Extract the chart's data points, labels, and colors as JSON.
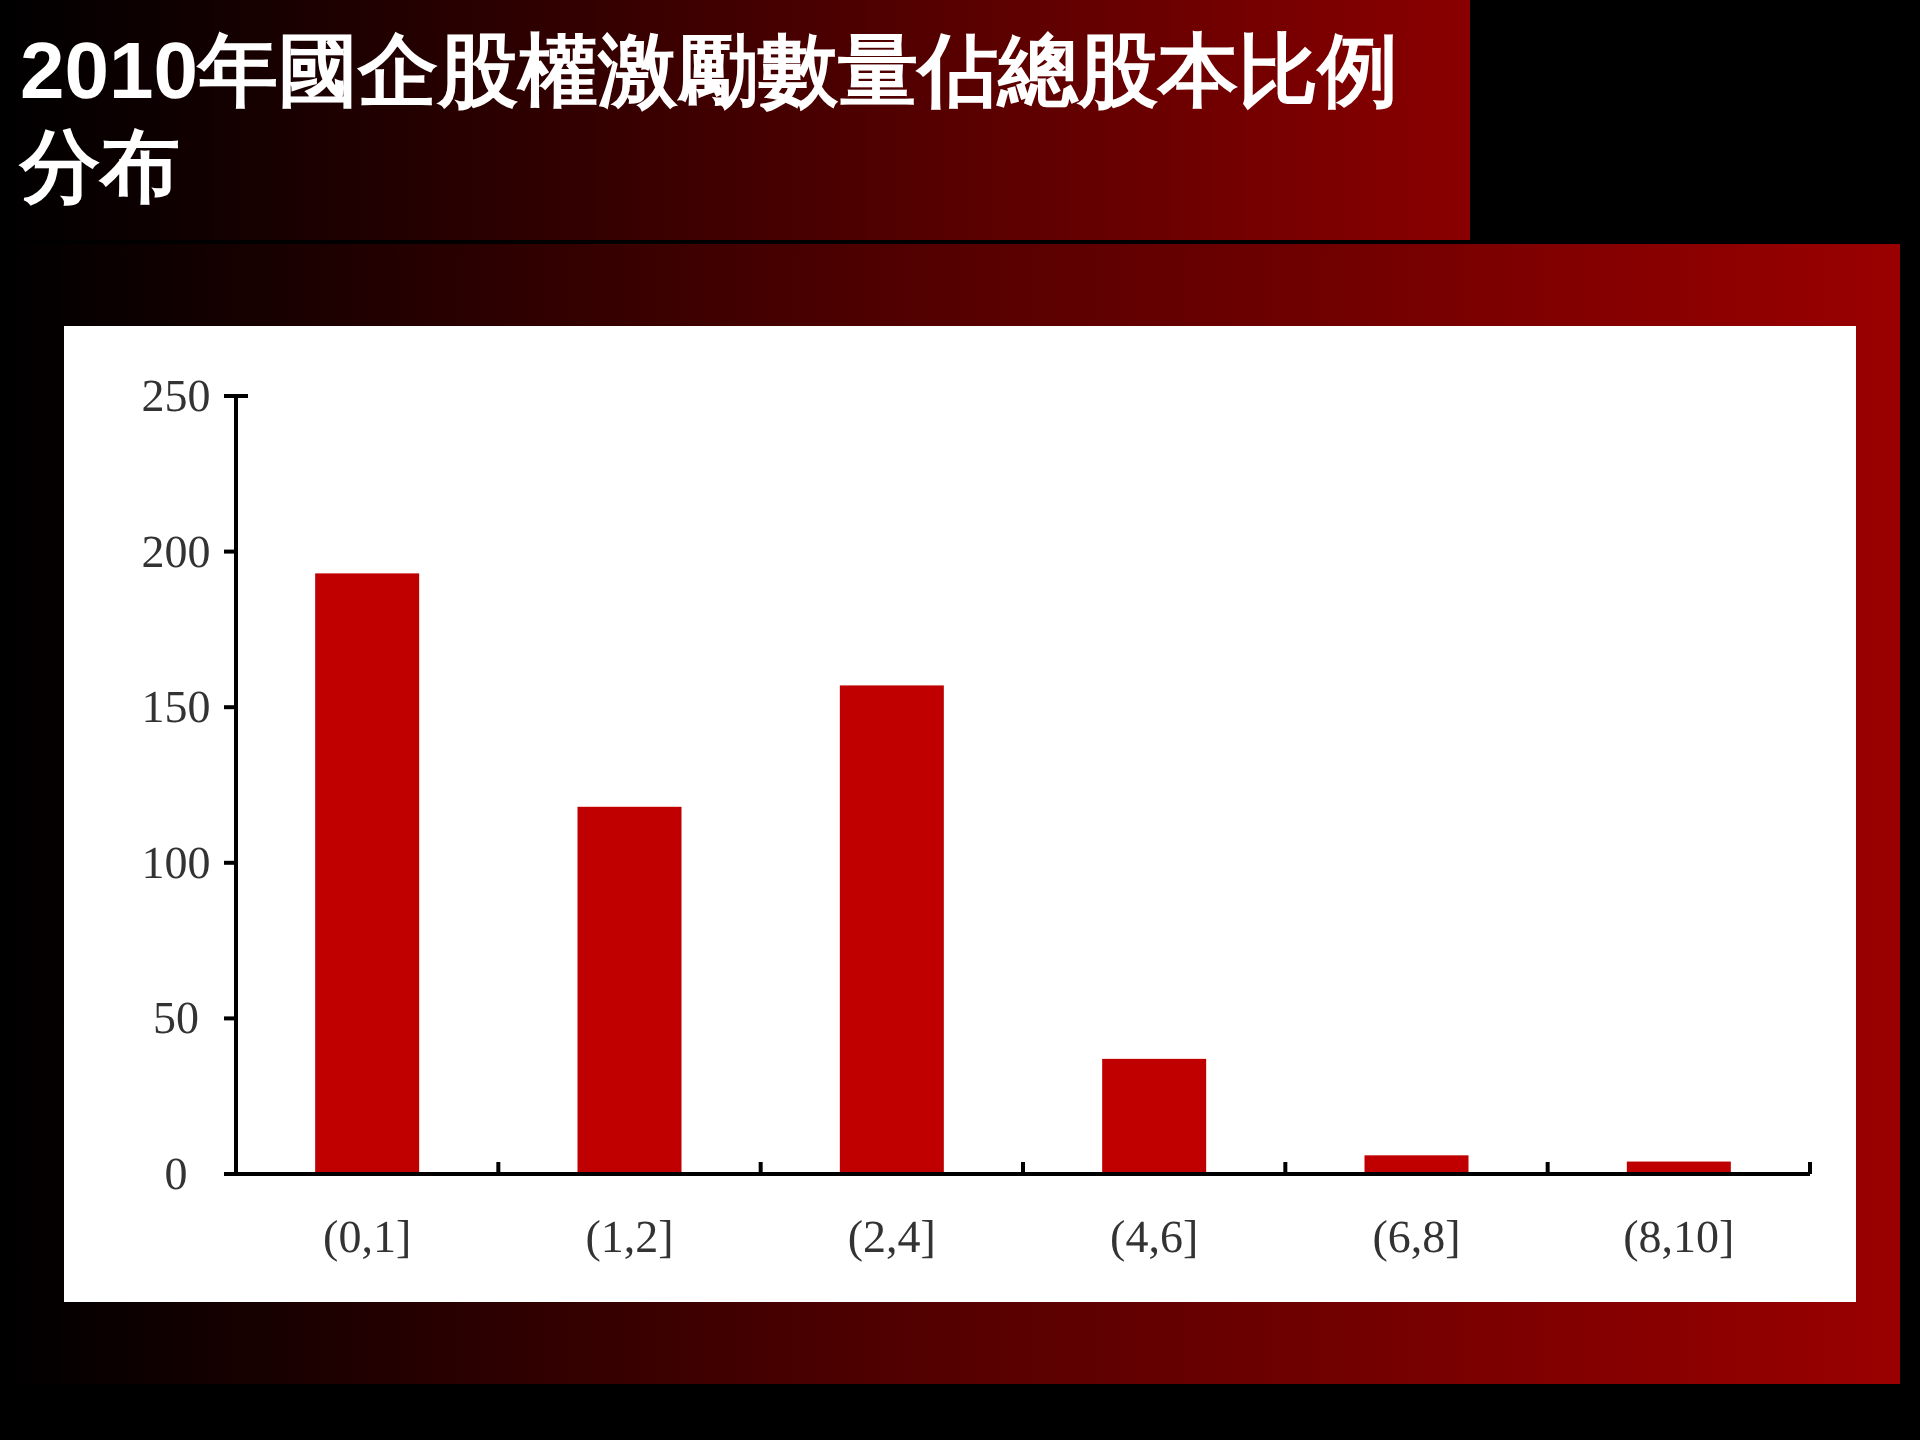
{
  "chart_data": {
    "type": "bar",
    "title": "2010年國企股權激勵數量佔總股本比例分布",
    "categories": [
      "(0,1]",
      "(1,2]",
      "(2,4]",
      "(4,6]",
      "(6,8]",
      "(8,10]"
    ],
    "values": [
      193,
      118,
      157,
      37,
      6,
      4
    ],
    "color": "#c00000",
    "ylim": [
      0,
      250
    ],
    "yticks": [
      0,
      50,
      100,
      150,
      200,
      250
    ]
  }
}
